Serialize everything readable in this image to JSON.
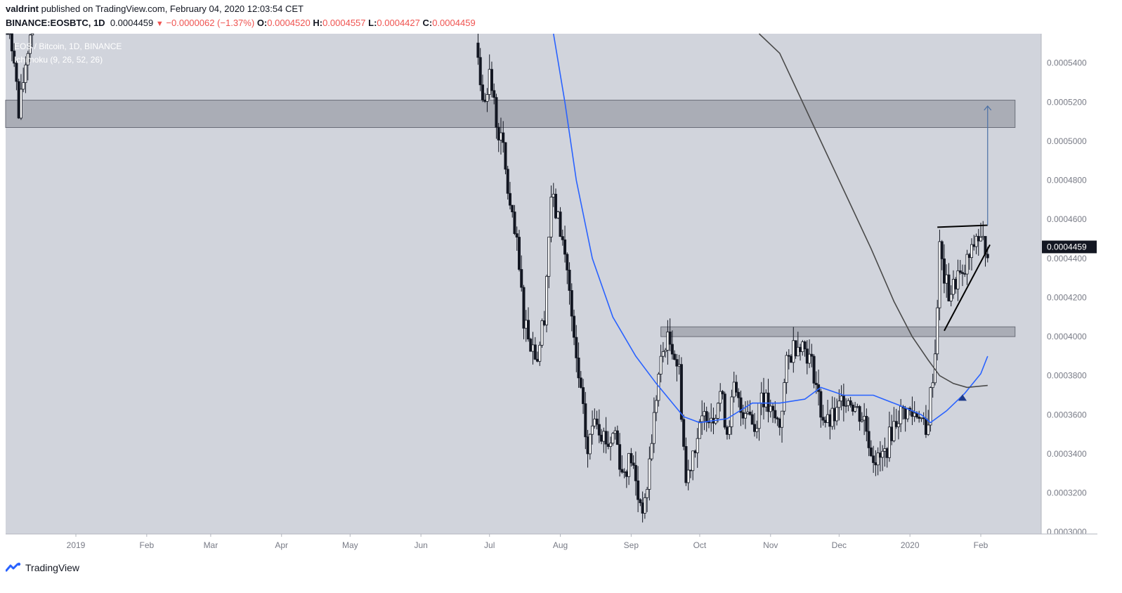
{
  "header": {
    "author": "valdrint",
    "published_text": "published on TradingView.com, February 04, 2020 12:03:54 CET"
  },
  "quote": {
    "symbol": "BINANCE:EOSBTC, 1D",
    "last": "0.0004459",
    "change": "−0.0000062 (−1.37%)",
    "o_label": "O:",
    "o": "0.0004520",
    "h_label": "H:",
    "h": "0.0004557",
    "l_label": "L:",
    "l": "0.0004427",
    "c_label": "C:",
    "c": "0.0004459"
  },
  "legend": {
    "title": "EOS / Bitcoin, 1D, BINANCE",
    "indicator": "Ichimoku (9, 26, 52, 26)"
  },
  "footer": {
    "brand": "TradingView"
  },
  "colors": {
    "pane_bg": "#d1d4dc",
    "candle": "#131722",
    "ma_fast": "#2962ff",
    "ma_slow": "#4a4a4a",
    "zone": "#9598a1",
    "price_tag_bg": "#131722",
    "down": "#ef5350"
  },
  "chart_data": {
    "type": "candlestick",
    "title": "EOS / Bitcoin, 1D, BINANCE",
    "y_ticks": [
      "0.0005400",
      "0.0005200",
      "0.0005000",
      "0.0004800",
      "0.0004600",
      "0.0004400",
      "0.0004200",
      "0.0004000",
      "0.0003800",
      "0.0003600",
      "0.0003400",
      "0.0003200",
      "0.0003000"
    ],
    "ylim": [
      0.000299,
      0.000555
    ],
    "x_ticks": [
      "2019",
      "Feb",
      "Mar",
      "Apr",
      "May",
      "Jun",
      "Jul",
      "Aug",
      "Sep",
      "Oct",
      "Nov",
      "Dec",
      "2020",
      "Feb"
    ],
    "x_tick_dates": [
      "2019-01-01",
      "2019-02-01",
      "2019-03-01",
      "2019-04-01",
      "2019-05-01",
      "2019-06-01",
      "2019-07-01",
      "2019-08-01",
      "2019-09-01",
      "2019-10-01",
      "2019-11-01",
      "2019-12-01",
      "2020-01-01",
      "2020-02-01"
    ],
    "last_price_label": "0.0004459",
    "resistance_zones": [
      {
        "from": "2018-12-01",
        "to": "2020-02-16",
        "low": 0.000507,
        "high": 0.000521
      },
      {
        "from": "2019-09-14",
        "to": "2020-02-16",
        "low": 0.0004,
        "high": 0.000405
      }
    ],
    "triangle": {
      "top": [
        {
          "x": "2020-01-13",
          "y": 0.000456
        },
        {
          "x": "2020-02-04",
          "y": 0.000457
        }
      ],
      "bottom": [
        {
          "x": "2020-01-16",
          "y": 0.000403
        },
        {
          "x": "2020-02-05",
          "y": 0.000447
        }
      ]
    },
    "target_arrow": {
      "x": "2020-02-04",
      "from": 0.000457,
      "to": 0.000518
    },
    "marker": {
      "x": "2020-01-24",
      "y": 0.000369
    },
    "series": [
      {
        "style": "candle",
        "approx_path": [
          [
            "2018-12-01",
            0.00056
          ],
          [
            "2018-12-05",
            0.000545
          ],
          [
            "2018-12-07",
            0.000512
          ],
          [
            "2018-12-10",
            0.00054
          ],
          [
            "2018-12-14",
            0.00057
          ],
          [
            "2019-06-25",
            0.00056
          ],
          [
            "2019-06-28",
            0.000518
          ],
          [
            "2019-07-01",
            0.000535
          ],
          [
            "2019-07-04",
            0.00051
          ],
          [
            "2019-07-07",
            0.000495
          ],
          [
            "2019-07-10",
            0.000465
          ],
          [
            "2019-07-13",
            0.000445
          ],
          [
            "2019-07-16",
            0.00041
          ],
          [
            "2019-07-19",
            0.000398
          ],
          [
            "2019-07-22",
            0.00039
          ],
          [
            "2019-07-25",
            0.000412
          ],
          [
            "2019-07-28",
            0.000472
          ],
          [
            "2019-08-01",
            0.000455
          ],
          [
            "2019-08-04",
            0.000435
          ],
          [
            "2019-08-07",
            0.000395
          ],
          [
            "2019-08-10",
            0.00037
          ],
          [
            "2019-08-13",
            0.00034
          ],
          [
            "2019-08-16",
            0.000362
          ],
          [
            "2019-08-19",
            0.000352
          ],
          [
            "2019-08-22",
            0.000345
          ],
          [
            "2019-08-25",
            0.000352
          ],
          [
            "2019-08-28",
            0.00033
          ],
          [
            "2019-09-01",
            0.000338
          ],
          [
            "2019-09-04",
            0.000318
          ],
          [
            "2019-09-07",
            0.000312
          ],
          [
            "2019-09-10",
            0.000348
          ],
          [
            "2019-09-13",
            0.00038
          ],
          [
            "2019-09-16",
            0.000398
          ],
          [
            "2019-09-19",
            0.000396
          ],
          [
            "2019-09-22",
            0.000382
          ],
          [
            "2019-09-25",
            0.000325
          ],
          [
            "2019-09-28",
            0.000342
          ],
          [
            "2019-10-01",
            0.000352
          ],
          [
            "2019-10-04",
            0.000362
          ],
          [
            "2019-10-07",
            0.00036
          ],
          [
            "2019-10-10",
            0.000372
          ],
          [
            "2019-10-13",
            0.000352
          ],
          [
            "2019-10-16",
            0.000372
          ],
          [
            "2019-10-19",
            0.000362
          ],
          [
            "2019-10-22",
            0.000365
          ],
          [
            "2019-10-25",
            0.000352
          ],
          [
            "2019-10-28",
            0.000372
          ],
          [
            "2019-11-01",
            0.00036
          ],
          [
            "2019-11-05",
            0.000355
          ],
          [
            "2019-11-08",
            0.000385
          ],
          [
            "2019-11-11",
            0.000395
          ],
          [
            "2019-11-14",
            0.000398
          ],
          [
            "2019-11-17",
            0.000392
          ],
          [
            "2019-11-20",
            0.000382
          ],
          [
            "2019-11-23",
            0.000362
          ],
          [
            "2019-11-26",
            0.000355
          ],
          [
            "2019-11-30",
            0.00036
          ],
          [
            "2019-12-03",
            0.00037
          ],
          [
            "2019-12-06",
            0.000368
          ],
          [
            "2019-12-09",
            0.000362
          ],
          [
            "2019-12-12",
            0.000358
          ],
          [
            "2019-12-15",
            0.000342
          ],
          [
            "2019-12-18",
            0.000336
          ],
          [
            "2019-12-21",
            0.00034
          ],
          [
            "2019-12-24",
            0.000352
          ],
          [
            "2019-12-27",
            0.00036
          ],
          [
            "2019-12-30",
            0.000362
          ],
          [
            "2020-01-02",
            0.00036
          ],
          [
            "2020-01-05",
            0.000362
          ],
          [
            "2020-01-08",
            0.000348
          ],
          [
            "2020-01-10",
            0.00037
          ],
          [
            "2020-01-12",
            0.000392
          ],
          [
            "2020-01-14",
            0.000445
          ],
          [
            "2020-01-16",
            0.00043
          ],
          [
            "2020-01-18",
            0.000422
          ],
          [
            "2020-01-20",
            0.000425
          ],
          [
            "2020-01-22",
            0.000432
          ],
          [
            "2020-01-24",
            0.000428
          ],
          [
            "2020-01-26",
            0.000438
          ],
          [
            "2020-01-28",
            0.000442
          ],
          [
            "2020-01-30",
            0.000452
          ],
          [
            "2020-02-01",
            0.000448
          ],
          [
            "2020-02-04",
            0.000446
          ]
        ]
      },
      {
        "style": "line-blue",
        "points": [
          [
            "2019-07-29",
            0.00056
          ],
          [
            "2019-08-03",
            0.00052
          ],
          [
            "2019-08-08",
            0.00048
          ],
          [
            "2019-08-15",
            0.00044
          ],
          [
            "2019-08-24",
            0.00041
          ],
          [
            "2019-09-03",
            0.00039
          ],
          [
            "2019-09-12",
            0.000376
          ],
          [
            "2019-09-24",
            0.000359
          ],
          [
            "2019-10-01",
            0.000356
          ],
          [
            "2019-10-13",
            0.000358
          ],
          [
            "2019-10-24",
            0.000366
          ],
          [
            "2019-11-05",
            0.000366
          ],
          [
            "2019-11-16",
            0.000368
          ],
          [
            "2019-11-23",
            0.000374
          ],
          [
            "2019-12-03",
            0.00037
          ],
          [
            "2019-12-16",
            0.00037
          ],
          [
            "2019-12-27",
            0.000365
          ],
          [
            "2020-01-06",
            0.00036
          ],
          [
            "2020-01-10",
            0.000356
          ],
          [
            "2020-01-17",
            0.000362
          ],
          [
            "2020-01-25",
            0.000371
          ],
          [
            "2020-02-01",
            0.000381
          ],
          [
            "2020-02-04",
            0.00039
          ]
        ]
      },
      {
        "style": "line-dark",
        "points": [
          [
            "2019-10-27",
            0.00056
          ],
          [
            "2019-11-05",
            0.000545
          ],
          [
            "2019-11-15",
            0.00052
          ],
          [
            "2019-11-25",
            0.000495
          ],
          [
            "2019-12-05",
            0.00047
          ],
          [
            "2019-12-15",
            0.000445
          ],
          [
            "2019-12-25",
            0.000418
          ],
          [
            "2020-01-02",
            0.0004
          ],
          [
            "2020-01-09",
            0.000388
          ],
          [
            "2020-01-14",
            0.00038
          ],
          [
            "2020-01-20",
            0.000376
          ],
          [
            "2020-01-26",
            0.000374
          ],
          [
            "2020-02-04",
            0.000375
          ]
        ]
      }
    ]
  }
}
